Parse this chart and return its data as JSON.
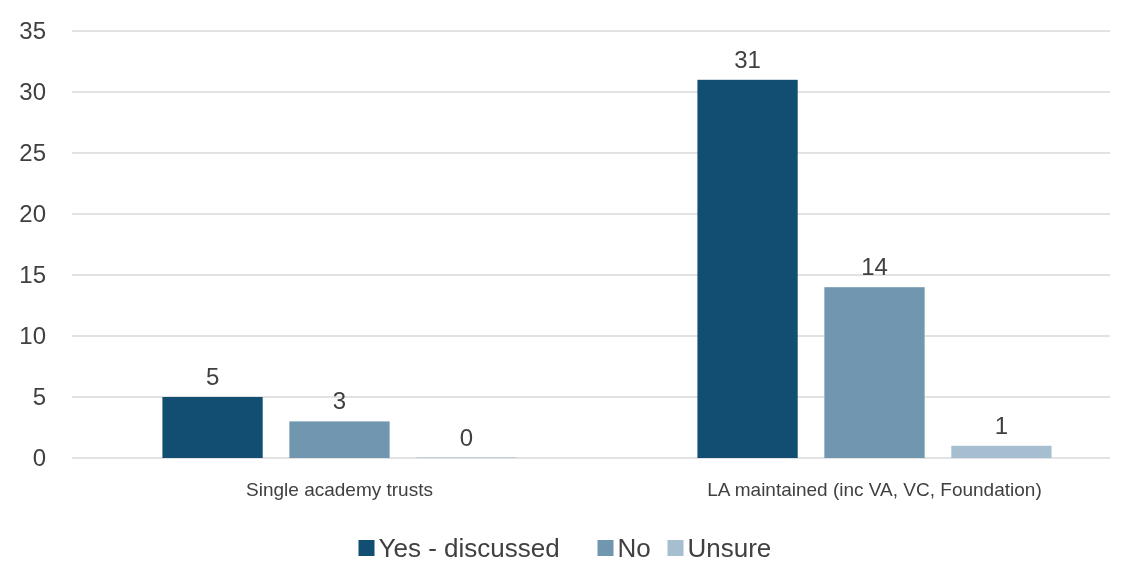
{
  "chart_data": {
    "type": "bar",
    "categories": [
      "Single academy trusts",
      "LA maintained (inc VA, VC, Foundation)"
    ],
    "series": [
      {
        "name": "Yes - discussed",
        "color": "#114e72",
        "values": [
          5,
          31
        ]
      },
      {
        "name": "No",
        "color": "#7096b0",
        "values": [
          3,
          14
        ]
      },
      {
        "name": "Unsure",
        "color": "#a5bfd0",
        "values": [
          0,
          1
        ]
      }
    ],
    "ylim": [
      0,
      35
    ],
    "yticks": [
      0,
      5,
      10,
      15,
      20,
      25,
      30,
      35
    ],
    "grid": "y",
    "legend": "bottom",
    "data_labels": true
  }
}
